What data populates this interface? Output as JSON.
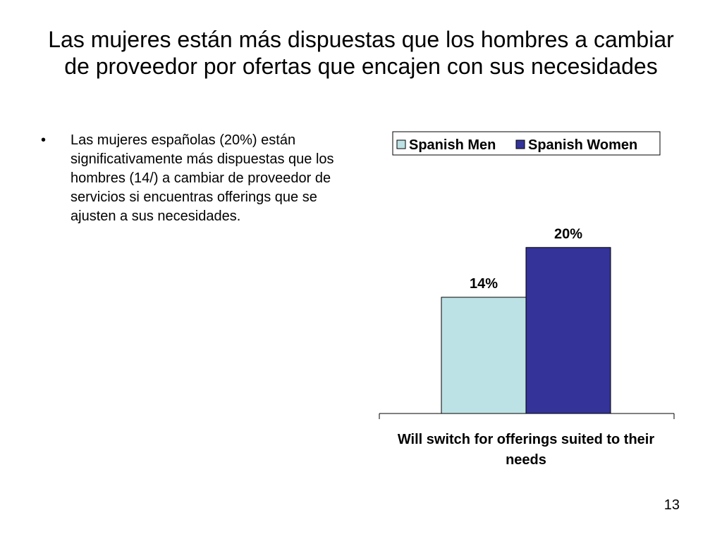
{
  "slide": {
    "title": "Las mujeres están más dispuestas que los hombres a cambiar de proveedor por ofertas que encajen con sus necesidades",
    "bullets": [
      "Las mujeres españolas (20%) están significativamente más dispuestas que los hombres (14/) a cambiar de proveedor de servicios si encuentras offerings que se ajusten a sus necesidades."
    ],
    "bullet_marker": "•",
    "page_number": "13"
  },
  "chart_data": {
    "type": "bar",
    "categories": [
      "Will switch for offerings suited to their needs"
    ],
    "category_label_lines": [
      "Will switch for offerings suited to their",
      "needs"
    ],
    "series": [
      {
        "name": "Spanish Men",
        "values": [
          14
        ],
        "labels": [
          "14%"
        ],
        "color": "#BDE2E5"
      },
      {
        "name": "Spanish Women",
        "values": [
          20
        ],
        "labels": [
          "20%"
        ],
        "color": "#333399"
      }
    ],
    "ylim": [
      0,
      28
    ],
    "legend_position": "top-right",
    "grid": false
  }
}
